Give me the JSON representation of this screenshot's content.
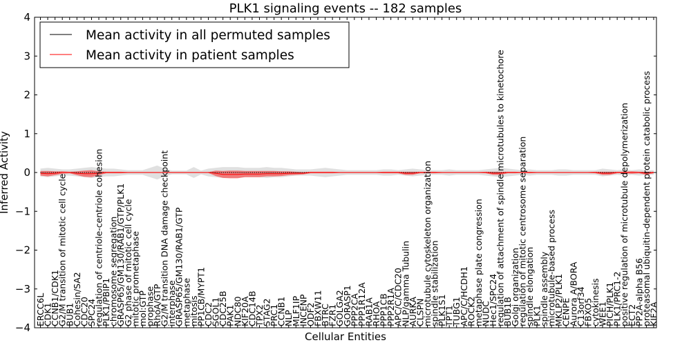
{
  "chart_data": {
    "type": "line",
    "title": "PLK1 signaling events -- 182 samples",
    "xlabel": "Cellular Entities",
    "ylabel": "Inferred Activity",
    "ylim": [
      -4,
      4
    ],
    "yticks": [
      4,
      3,
      2,
      1,
      0,
      -1,
      -2,
      -3,
      -4
    ],
    "ytick_labels": [
      "4",
      "3",
      "2",
      "1",
      "0",
      "−1",
      "−2",
      "−3",
      "−4"
    ],
    "legend_position": "top-left",
    "categories": [
      "ERCC6L",
      "CDK1",
      "CCNB1/CDK1",
      "G2/M transition of mitotic cell cycle",
      "BUB1",
      "Cohesin/SA2",
      "CDC20",
      "SPC24",
      "regulation of centriole-centriole cohesion",
      "PLK1/PBIP1",
      "chromosome segregation",
      "GRASP65/GM130/RAB1/GTP/PLK1",
      "G2 phase of mitotic cell cycle",
      "mitotic prometaphase",
      "mol:GTP",
      "prophase",
      "RhoA/GTP",
      "G2/M transition DNA damage checkpoint",
      "interphase",
      "GRASP65/GM130/RAB1/GTP",
      "metaphase",
      "mitosis",
      "PP1CB/MYPT1",
      "CDC2",
      "SGOL1",
      "CDC25B",
      "PAK1",
      "NDC80",
      "KIF20A",
      "CDC14B",
      "TPX2",
      "STAG2",
      "PRC1",
      "CCNB1",
      "NLP",
      "MLF1IP",
      "INCENP",
      "ODF2",
      "FBXW11",
      "BTRC",
      "FZR1",
      "GOLGA2",
      "GORASP1",
      "PPP2CA",
      "PPP1R12A",
      "RAB1A",
      "RHOA",
      "PPP1CB",
      "PPP2R1A",
      "APC/C/CDC20",
      "NLP/gamma Tubulin",
      "AURKA",
      "CLSPN",
      "microtubule cytoskeleton organization",
      "spindle stabilization",
      "PLK1S1",
      "TPT1",
      "TUBG1",
      "APC/C/HCDH1",
      "ROCK2",
      "metaphase plate congression",
      "NUDC",
      "Hec1/SPC24",
      "regulation of attachment of spindle microtubules to kinetochore",
      "BUB1B",
      "Golgi organization",
      "regulation of mitotic centrosome separation",
      "spindle elongation",
      "PLK1",
      "spindle assembly",
      "microtubule-based process",
      "MKLP2/PLK1",
      "CENPE",
      "Aurora A/BORA",
      "C13orf34",
      "FBXO5",
      "cytokinesis",
      "WEE1",
      "PICH/PLK1",
      "PLK1/PRC1-2",
      "positive regulation of microtubule depolymerization",
      "ECT2",
      "PP2A-alpha B56",
      "proteasomal ubiquitin-dependent protein catabolic process",
      "KIF2A"
    ],
    "series": [
      {
        "name": "Mean activity in all permuted samples",
        "color": "#000000",
        "values": [
          0,
          0,
          0,
          0,
          0,
          0,
          0,
          0,
          0,
          0,
          0,
          0,
          0,
          0,
          0,
          0,
          0,
          0,
          0,
          0,
          0,
          0,
          0,
          0,
          0,
          0,
          0,
          0,
          0,
          0,
          0,
          0,
          0,
          0,
          0,
          0,
          0,
          0,
          0,
          0,
          0,
          0,
          0,
          0,
          0,
          0,
          0,
          0,
          0,
          0,
          0,
          0,
          0,
          0,
          0,
          0,
          0,
          0,
          0,
          0,
          0,
          0,
          0,
          0,
          0,
          0,
          0,
          0,
          0,
          0,
          0,
          0,
          0,
          0,
          0,
          0,
          0,
          0,
          0,
          0,
          0,
          0,
          0,
          0,
          0
        ],
        "band": [
          0.1,
          0.12,
          0.1,
          0.08,
          0.08,
          0.1,
          0.12,
          0.14,
          0.12,
          0.1,
          0.1,
          0.08,
          0.06,
          0.06,
          0.06,
          0.12,
          0.18,
          0.1,
          0.05,
          0.05,
          0.05,
          0.14,
          0.05,
          0.1,
          0.12,
          0.14,
          0.14,
          0.14,
          0.12,
          0.12,
          0.12,
          0.14,
          0.12,
          0.12,
          0.1,
          0.08,
          0.08,
          0.08,
          0.1,
          0.12,
          0.1,
          0.08,
          0.06,
          0.06,
          0.06,
          0.06,
          0.06,
          0.08,
          0.08,
          0.06,
          0.08,
          0.1,
          0.08,
          0.06,
          0.06,
          0.06,
          0.08,
          0.06,
          0.06,
          0.06,
          0.06,
          0.08,
          0.1,
          0.12,
          0.1,
          0.08,
          0.06,
          0.08,
          0.06,
          0.06,
          0.06,
          0.08,
          0.08,
          0.06,
          0.06,
          0.06,
          0.06,
          0.1,
          0.08,
          0.06,
          0.08,
          0.06,
          0.08,
          0.06,
          0.06
        ]
      },
      {
        "name": "Mean activity in patient samples",
        "color": "#ff0000",
        "values": [
          -0.02,
          -0.03,
          -0.02,
          0,
          0,
          -0.02,
          -0.03,
          -0.03,
          -0.02,
          0,
          0,
          0,
          0,
          0,
          0,
          0,
          0,
          0,
          0,
          0,
          0,
          0,
          0,
          0,
          -0.02,
          -0.05,
          -0.05,
          -0.05,
          -0.04,
          -0.04,
          -0.04,
          -0.03,
          -0.03,
          -0.03,
          -0.02,
          -0.02,
          -0.02,
          0,
          0,
          0,
          0,
          0,
          0,
          0,
          0,
          0,
          0,
          0,
          0,
          0,
          -0.02,
          -0.02,
          0,
          0,
          0,
          0,
          0,
          0,
          0,
          0,
          0,
          0,
          -0.02,
          -0.02,
          0,
          0,
          0,
          0,
          0,
          0,
          0,
          0,
          0,
          0,
          0,
          0,
          0,
          -0.02,
          -0.02,
          0,
          0,
          0,
          0,
          -0.02,
          0
        ],
        "band": [
          0.06,
          0.07,
          0.05,
          0.03,
          0.02,
          0.05,
          0.08,
          0.09,
          0.05,
          0.02,
          0.02,
          0.02,
          0.01,
          0.01,
          0.01,
          0.01,
          0.01,
          0.01,
          0.01,
          0.01,
          0.01,
          0.01,
          0.01,
          0.01,
          0.07,
          0.09,
          0.1,
          0.1,
          0.08,
          0.08,
          0.08,
          0.07,
          0.07,
          0.06,
          0.05,
          0.04,
          0.03,
          0.02,
          0.02,
          0.02,
          0.02,
          0.01,
          0.01,
          0.01,
          0.01,
          0.01,
          0.01,
          0.02,
          0.02,
          0.02,
          0.04,
          0.04,
          0.02,
          0.02,
          0.02,
          0.01,
          0.01,
          0.01,
          0.01,
          0.01,
          0.01,
          0.02,
          0.04,
          0.04,
          0.02,
          0.02,
          0.01,
          0.02,
          0.01,
          0.01,
          0.01,
          0.01,
          0.01,
          0.01,
          0.01,
          0.01,
          0.02,
          0.04,
          0.04,
          0.02,
          0.02,
          0.03,
          0.02,
          0.04,
          0.02
        ]
      }
    ]
  }
}
